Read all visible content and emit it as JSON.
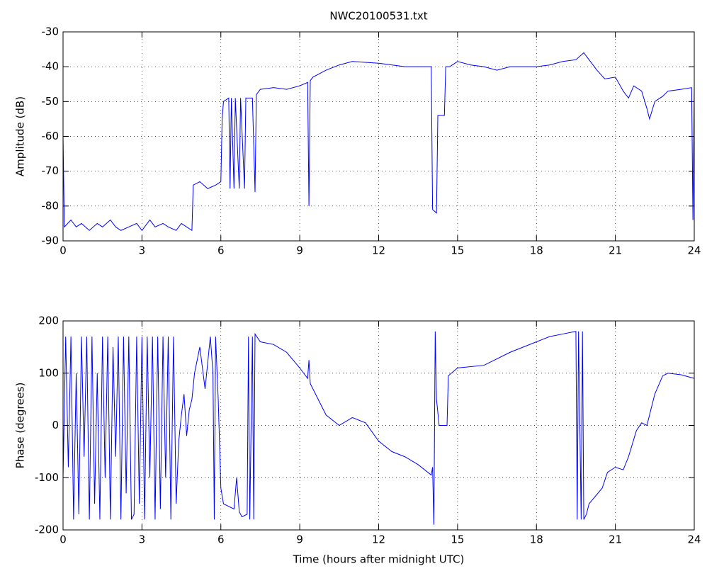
{
  "chart_data": [
    {
      "type": "line",
      "title": "NWC20100531.txt",
      "ylabel": "Amplitude (dB)",
      "color": "#0000ff",
      "grid": true,
      "xlim": [
        0,
        24
      ],
      "xticks": [
        0,
        3,
        6,
        9,
        12,
        15,
        18,
        21,
        24
      ],
      "ylim": [
        -90,
        -30
      ],
      "yticks": [
        -90,
        -80,
        -70,
        -60,
        -50,
        -40,
        -30
      ],
      "x": [
        0,
        0.05,
        0.3,
        0.5,
        0.7,
        1,
        1.3,
        1.5,
        1.8,
        2,
        2.2,
        2.5,
        2.8,
        3,
        3.3,
        3.5,
        3.8,
        4,
        4.3,
        4.5,
        4.7,
        4.9,
        4.95,
        5.2,
        5.5,
        5.8,
        6,
        6.05,
        6.1,
        6.3,
        6.35,
        6.4,
        6.5,
        6.55,
        6.7,
        6.75,
        6.9,
        6.95,
        7.2,
        7.3,
        7.35,
        7.5,
        8,
        8.5,
        9,
        9.3,
        9.35,
        9.4,
        9.5,
        10,
        10.5,
        11,
        12,
        13,
        14,
        14.05,
        14.2,
        14.25,
        14.5,
        14.55,
        14.7,
        15,
        15.5,
        16,
        16.5,
        17,
        18,
        18.5,
        19,
        19.5,
        19.8,
        20,
        20.3,
        20.6,
        21,
        21.3,
        21.5,
        21.7,
        22,
        22.2,
        22.3,
        22.5,
        22.8,
        23,
        23.5,
        23.9,
        23.95,
        24
      ],
      "values": [
        -60,
        -86,
        -84,
        -86,
        -85,
        -87,
        -85,
        -86,
        -84,
        -86,
        -87,
        -86,
        -85,
        -87,
        -84,
        -86,
        -85,
        -86,
        -87,
        -85,
        -86,
        -87,
        -74,
        -73,
        -75,
        -74,
        -73,
        -55,
        -50,
        -49,
        -75,
        -49,
        -75,
        -49,
        -75,
        -49,
        -75,
        -49,
        -49,
        -76,
        -48,
        -46.5,
        -46,
        -46.5,
        -45.5,
        -44.5,
        -80,
        -44,
        -43,
        -41,
        -39.5,
        -38.5,
        -39,
        -40,
        -40,
        -81,
        -82,
        -54,
        -54,
        -40,
        -40,
        -38.5,
        -39.5,
        -40,
        -41,
        -40,
        -40,
        -39.5,
        -38.5,
        -38,
        -36,
        -38,
        -41,
        -43.5,
        -43,
        -47,
        -49,
        -45.5,
        -47,
        -52,
        -55,
        -50,
        -48.5,
        -47,
        -46.5,
        -46,
        -84,
        -46
      ]
    },
    {
      "type": "line",
      "xlabel": "Time (hours after midnight UTC)",
      "ylabel": "Phase (degrees)",
      "color": "#0000ff",
      "grid": true,
      "xlim": [
        0,
        24
      ],
      "xticks": [
        0,
        3,
        6,
        9,
        12,
        15,
        18,
        21,
        24
      ],
      "ylim": [
        -200,
        200
      ],
      "yticks": [
        -200,
        -100,
        0,
        100,
        200
      ],
      "x": [
        0,
        0.1,
        0.2,
        0.3,
        0.4,
        0.5,
        0.6,
        0.7,
        0.8,
        0.9,
        1.0,
        1.1,
        1.2,
        1.3,
        1.4,
        1.5,
        1.6,
        1.7,
        1.8,
        1.9,
        2.0,
        2.1,
        2.2,
        2.3,
        2.4,
        2.5,
        2.6,
        2.7,
        2.8,
        2.9,
        3.0,
        3.1,
        3.2,
        3.3,
        3.4,
        3.5,
        3.6,
        3.7,
        3.8,
        3.9,
        4.0,
        4.1,
        4.2,
        4.3,
        4.4,
        4.5,
        4.6,
        4.7,
        4.8,
        4.9,
        5.0,
        5.2,
        5.4,
        5.6,
        5.7,
        5.75,
        5.8,
        5.9,
        6.0,
        6.1,
        6.3,
        6.5,
        6.6,
        6.7,
        6.8,
        7.0,
        7.05,
        7.1,
        7.2,
        7.25,
        7.3,
        7.5,
        8,
        8.5,
        9,
        9.3,
        9.35,
        9.4,
        10,
        10.5,
        11,
        11.5,
        12,
        12.5,
        13,
        13.5,
        14,
        14.05,
        14.1,
        14.15,
        14.2,
        14.3,
        14.4,
        14.6,
        14.65,
        15,
        16,
        17,
        18,
        18.5,
        19,
        19.5,
        19.55,
        19.6,
        19.7,
        19.75,
        19.8,
        19.9,
        20,
        20.5,
        20.7,
        21,
        21.3,
        21.5,
        21.8,
        22,
        22.2,
        22.5,
        22.8,
        23,
        23.5,
        24
      ],
      "values": [
        -100,
        170,
        -80,
        170,
        -180,
        100,
        -170,
        170,
        -60,
        170,
        -180,
        170,
        -150,
        100,
        -180,
        170,
        -100,
        170,
        -180,
        150,
        -60,
        170,
        -180,
        170,
        -130,
        170,
        -180,
        -170,
        170,
        -150,
        170,
        -180,
        170,
        -100,
        170,
        -180,
        170,
        -160,
        170,
        -100,
        170,
        -180,
        170,
        -150,
        -30,
        20,
        60,
        -20,
        30,
        50,
        100,
        150,
        70,
        170,
        100,
        -180,
        170,
        50,
        -120,
        -150,
        -155,
        -160,
        -100,
        -165,
        -175,
        -170,
        170,
        -180,
        170,
        -180,
        175,
        160,
        155,
        140,
        110,
        90,
        125,
        80,
        20,
        0,
        15,
        5,
        -30,
        -50,
        -60,
        -75,
        -95,
        -80,
        -190,
        180,
        50,
        0,
        0,
        0,
        95,
        110,
        115,
        140,
        160,
        170,
        175,
        180,
        -180,
        180,
        -180,
        180,
        -180,
        -170,
        -150,
        -120,
        -90,
        -80,
        -85,
        -60,
        -10,
        5,
        0,
        60,
        95,
        100,
        97,
        90
      ]
    }
  ]
}
